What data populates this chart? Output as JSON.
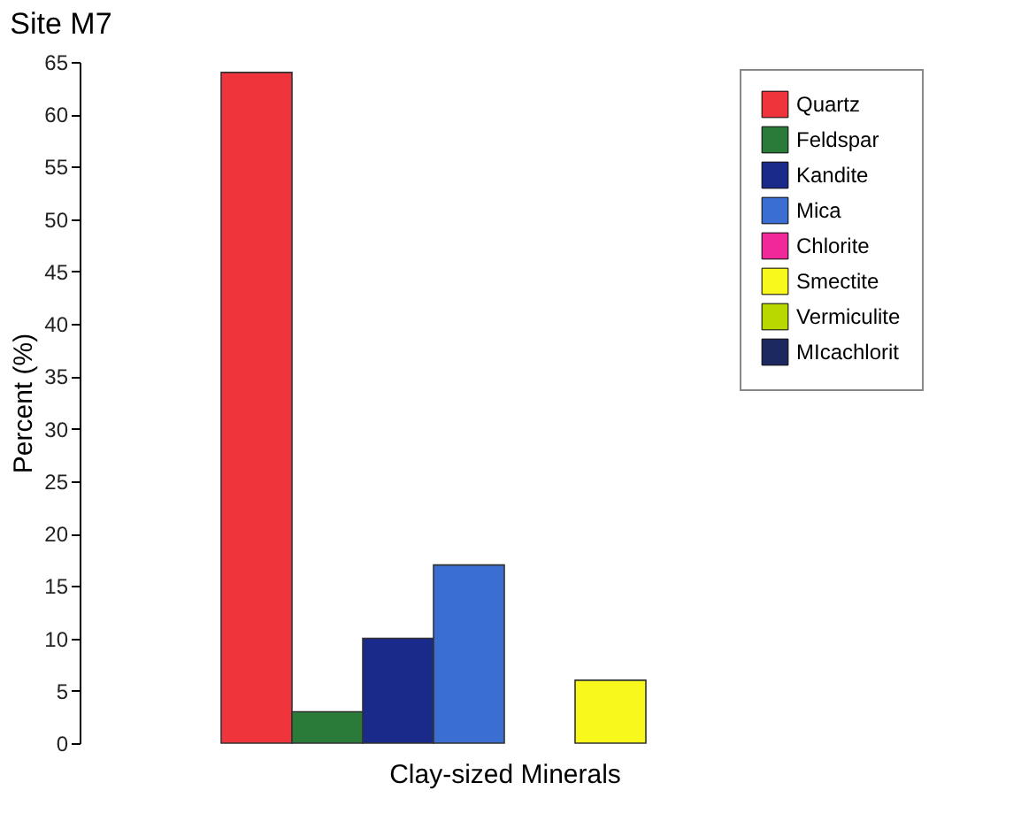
{
  "chart_data": {
    "type": "bar",
    "title": "Site M7",
    "xlabel": "Clay-sized Minerals",
    "ylabel": "Percent (%)",
    "categories": [
      null
    ],
    "series": [
      {
        "name": "Quartz",
        "color": "#f0343c",
        "values": [
          64
        ]
      },
      {
        "name": "Feldspar",
        "color": "#2a7a3a",
        "values": [
          3
        ]
      },
      {
        "name": "Kandite",
        "color": "#1a2a8a",
        "values": [
          10
        ]
      },
      {
        "name": "Mica",
        "color": "#3a6ed0",
        "values": [
          17
        ]
      },
      {
        "name": "Chlorite",
        "color": "#f0289a",
        "values": [
          0
        ]
      },
      {
        "name": "Smectite",
        "color": "#f8f81c",
        "values": [
          6
        ]
      },
      {
        "name": "Vermiculite",
        "color": "#b8d800",
        "values": [
          0
        ]
      },
      {
        "name": "MIcachlorit",
        "color": "#1c2860",
        "values": [
          0
        ]
      }
    ],
    "ylim": [
      0,
      65
    ],
    "yticks": [
      0,
      5,
      10,
      15,
      20,
      25,
      30,
      35,
      40,
      45,
      50,
      55,
      60,
      65
    ],
    "grid": false,
    "legend": "top right",
    "tick_labels": "y"
  }
}
